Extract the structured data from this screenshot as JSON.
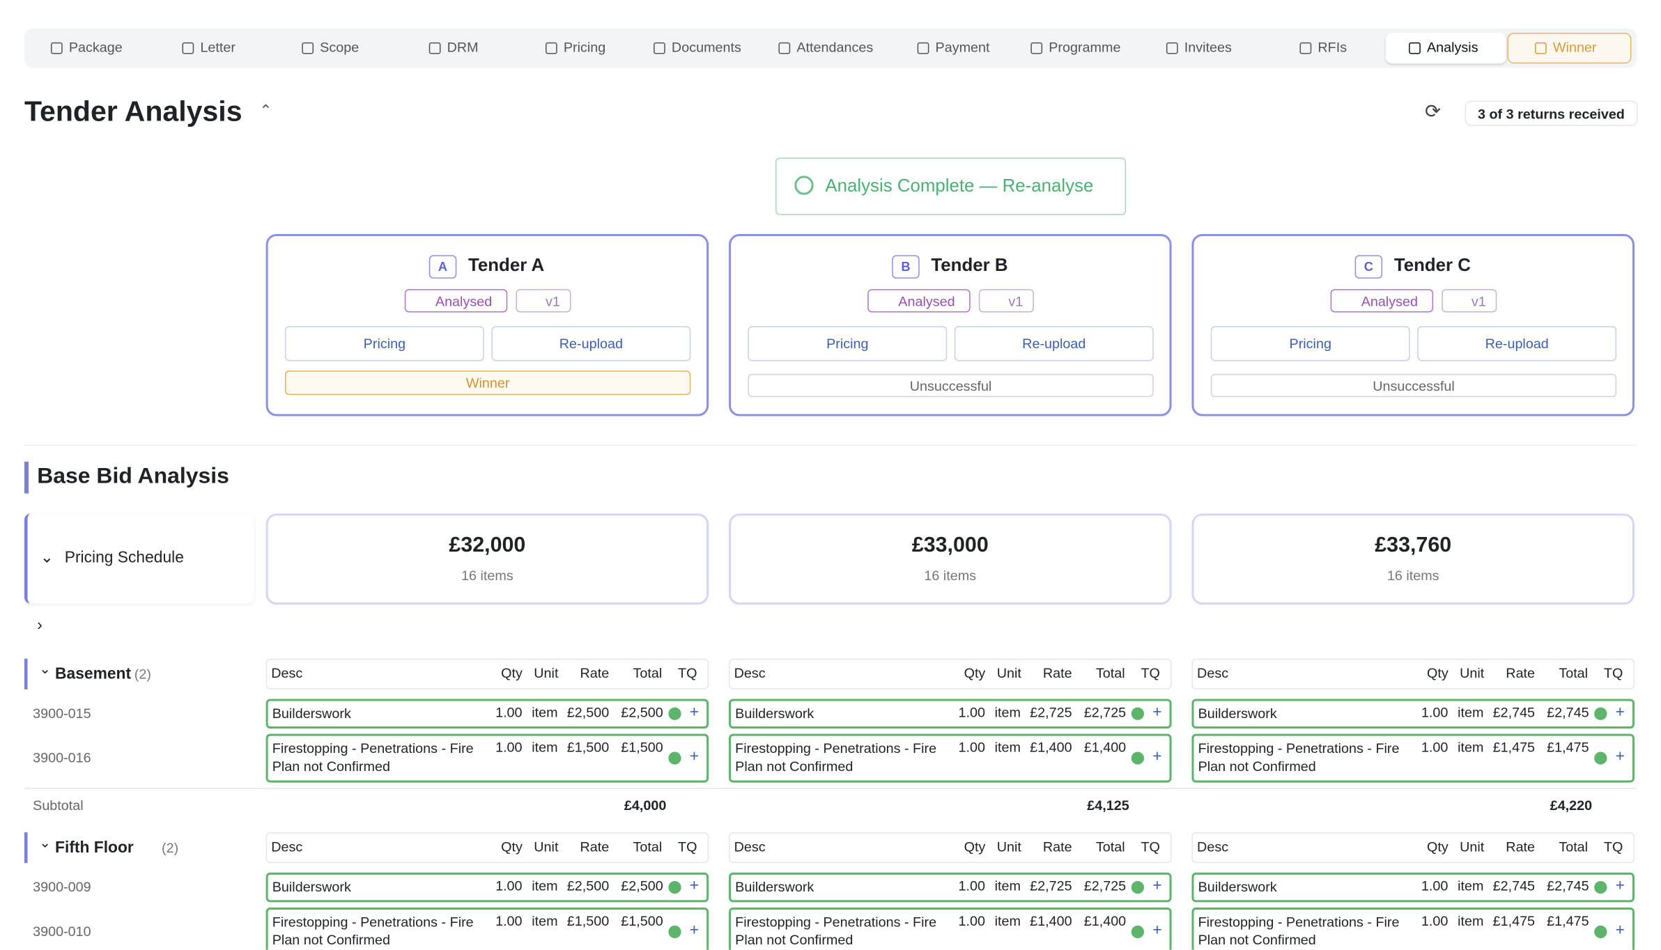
{
  "nav": {
    "tabs": [
      "Package",
      "Letter",
      "Scope",
      "DRM",
      "Pricing",
      "Documents",
      "Attendances",
      "Payment",
      "Programme",
      "Invitees",
      "RFIs",
      "Analysis",
      "Winner"
    ]
  },
  "header": {
    "title": "Tender Analysis",
    "returns": "3 of 3 returns received"
  },
  "analysis_button": "Analysis Complete — Re-analyse",
  "tenders": [
    {
      "badge": "A",
      "name": "Tender A",
      "status": "Analysed",
      "version": "v1",
      "pricing": "Pricing",
      "reupload": "Re-upload",
      "outcome": "Winner",
      "total": "£32,000",
      "items": "16 items"
    },
    {
      "badge": "B",
      "name": "Tender B",
      "status": "Analysed",
      "version": "v1",
      "pricing": "Pricing",
      "reupload": "Re-upload",
      "outcome": "Unsuccessful",
      "total": "£33,000",
      "items": "16 items"
    },
    {
      "badge": "C",
      "name": "Tender C",
      "status": "Analysed",
      "version": "v1",
      "pricing": "Pricing",
      "reupload": "Re-upload",
      "outcome": "Unsuccessful",
      "total": "£33,760",
      "items": "16 items"
    }
  ],
  "section": {
    "title": "Base Bid Analysis",
    "schedule": "Pricing Schedule"
  },
  "columns": [
    "Desc",
    "Qty",
    "Unit",
    "Rate",
    "Total",
    "TQ"
  ],
  "groups": [
    {
      "name": "Basement",
      "count": "(2)",
      "rows": [
        {
          "code": "3900-015",
          "cells": [
            {
              "desc": "Builderswork",
              "qty": "1.00",
              "unit": "item",
              "rate": "£2,500",
              "total": "£2,500"
            },
            {
              "desc": "Builderswork",
              "qty": "1.00",
              "unit": "item",
              "rate": "£2,725",
              "total": "£2,725"
            },
            {
              "desc": "Builderswork",
              "qty": "1.00",
              "unit": "item",
              "rate": "£2,745",
              "total": "£2,745"
            }
          ]
        },
        {
          "code": "3900-016",
          "cells": [
            {
              "desc": "Firestopping - Penetrations - Fire Plan not Confirmed",
              "qty": "1.00",
              "unit": "item",
              "rate": "£1,500",
              "total": "£1,500"
            },
            {
              "desc": "Firestopping - Penetrations - Fire Plan not Confirmed",
              "qty": "1.00",
              "unit": "item",
              "rate": "£1,400",
              "total": "£1,400"
            },
            {
              "desc": "Firestopping - Penetrations - Fire Plan not Confirmed",
              "qty": "1.00",
              "unit": "item",
              "rate": "£1,475",
              "total": "£1,475"
            }
          ]
        }
      ],
      "subtotal_label": "Subtotal",
      "subtotals": [
        "£4,000",
        "£4,125",
        "£4,220"
      ]
    },
    {
      "name": "Fifth Floor",
      "count": "(2)",
      "rows": [
        {
          "code": "3900-009",
          "cells": [
            {
              "desc": "Builderswork",
              "qty": "1.00",
              "unit": "item",
              "rate": "£2,500",
              "total": "£2,500"
            },
            {
              "desc": "Builderswork",
              "qty": "1.00",
              "unit": "item",
              "rate": "£2,725",
              "total": "£2,725"
            },
            {
              "desc": "Builderswork",
              "qty": "1.00",
              "unit": "item",
              "rate": "£2,745",
              "total": "£2,745"
            }
          ]
        },
        {
          "code": "3900-010",
          "cells": [
            {
              "desc": "Firestopping - Penetrations - Fire Plan not Confirmed",
              "qty": "1.00",
              "unit": "item",
              "rate": "£1,500",
              "total": "£1,500"
            },
            {
              "desc": "Firestopping - Penetrations - Fire Plan not Confirmed",
              "qty": "1.00",
              "unit": "item",
              "rate": "£1,400",
              "total": "£1,400"
            },
            {
              "desc": "Firestopping - Penetrations - Fire Plan not Confirmed",
              "qty": "1.00",
              "unit": "item",
              "rate": "£1,475",
              "total": "£1,475"
            }
          ]
        }
      ]
    }
  ]
}
